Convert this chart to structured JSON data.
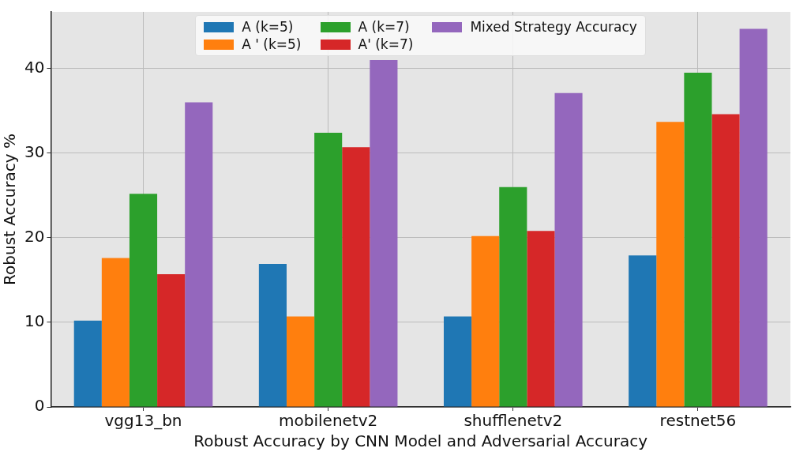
{
  "chart_data": {
    "type": "bar",
    "xlabel": "Robust Accuracy by CNN Model and Adversarial Accuracy",
    "ylabel": "Robust Accuracy %",
    "categories": [
      "vgg13_bn",
      "mobilenetv2",
      "shufflenetv2",
      "restnet56"
    ],
    "series": [
      {
        "name": "A (k=5)",
        "color": "#1f77b4",
        "values": [
          10.2,
          16.9,
          10.7,
          17.9
        ]
      },
      {
        "name": "A ' (k=5)",
        "color": "#ff7f0e",
        "values": [
          17.6,
          10.7,
          20.2,
          33.7
        ]
      },
      {
        "name": "A (k=7)",
        "color": "#2ca02c",
        "values": [
          25.2,
          32.4,
          26.0,
          39.5
        ]
      },
      {
        "name": "A' (k=7)",
        "color": "#d62728",
        "values": [
          15.7,
          30.7,
          20.8,
          34.6
        ]
      },
      {
        "name": "Mixed Strategy Accuracy",
        "color": "#9467bd",
        "values": [
          36.0,
          41.0,
          37.1,
          44.7
        ]
      }
    ],
    "ylim": [
      0,
      46.7
    ],
    "yticks": [
      0,
      10,
      20,
      30,
      40
    ],
    "grid": true,
    "legend": "top"
  }
}
